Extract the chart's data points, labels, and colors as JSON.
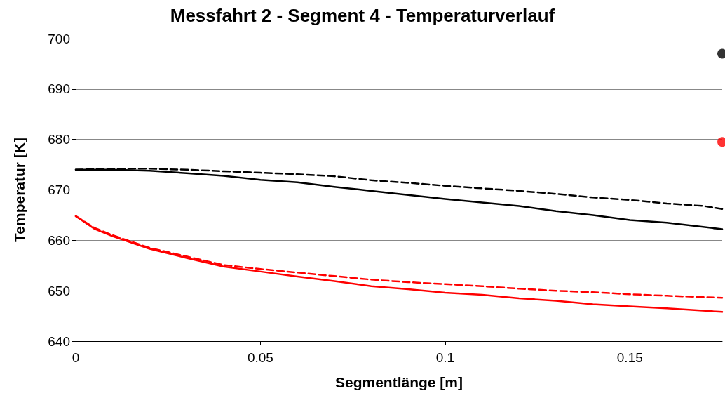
{
  "chart_data": {
    "type": "line",
    "title": "Messfahrt 2 - Segment 4 - Temperaturverlauf",
    "xlabel": "Segmentlänge [m]",
    "ylabel": "Temperatur [K]",
    "xlim": [
      0,
      0.175
    ],
    "xticks": [
      0,
      0.05,
      0.1,
      0.15
    ],
    "ylim": [
      640,
      700
    ],
    "yticks": [
      640,
      650,
      660,
      670,
      680,
      690,
      700
    ],
    "grid": "y",
    "series": [
      {
        "color": "#000000",
        "line_style": "solid",
        "marker": "none",
        "x": [
          0,
          0.01,
          0.02,
          0.03,
          0.04,
          0.05,
          0.06,
          0.07,
          0.08,
          0.09,
          0.1,
          0.11,
          0.12,
          0.13,
          0.14,
          0.15,
          0.16,
          0.175
        ],
        "values": [
          674,
          674,
          673.8,
          673.3,
          672.8,
          672.0,
          671.5,
          670.6,
          669.8,
          669.0,
          668.2,
          667.5,
          666.8,
          665.8,
          665.0,
          664.0,
          663.5,
          662.2
        ]
      },
      {
        "color": "#000000",
        "line_style": "dashed",
        "marker": "none",
        "x": [
          0,
          0.01,
          0.02,
          0.03,
          0.04,
          0.05,
          0.06,
          0.07,
          0.08,
          0.09,
          0.1,
          0.11,
          0.12,
          0.13,
          0.14,
          0.15,
          0.16,
          0.17,
          0.175
        ],
        "values": [
          674,
          674.2,
          674.2,
          674.0,
          673.7,
          673.4,
          673.1,
          672.7,
          671.9,
          671.4,
          670.8,
          670.3,
          669.8,
          669.2,
          668.5,
          668.0,
          667.3,
          666.8,
          666.2
        ]
      },
      {
        "color": "#ff0000",
        "line_style": "solid",
        "marker": "none",
        "x": [
          0,
          0.005,
          0.01,
          0.02,
          0.03,
          0.04,
          0.05,
          0.06,
          0.07,
          0.08,
          0.09,
          0.1,
          0.11,
          0.12,
          0.13,
          0.14,
          0.15,
          0.16,
          0.175
        ],
        "values": [
          664.8,
          662.3,
          660.8,
          658.3,
          656.5,
          654.8,
          653.8,
          652.8,
          651.9,
          650.9,
          650.3,
          649.6,
          649.2,
          648.5,
          648.0,
          647.3,
          646.9,
          646.5,
          645.8
        ]
      },
      {
        "color": "#ff0000",
        "line_style": "dashed",
        "marker": "none",
        "x": [
          0,
          0.005,
          0.01,
          0.02,
          0.03,
          0.04,
          0.05,
          0.06,
          0.07,
          0.08,
          0.09,
          0.1,
          0.11,
          0.12,
          0.13,
          0.14,
          0.15,
          0.16,
          0.175
        ],
        "values": [
          664.8,
          662.5,
          661,
          658.5,
          656.8,
          655.1,
          654.3,
          653.6,
          652.9,
          652.2,
          651.7,
          651.3,
          650.9,
          650.4,
          650.0,
          649.7,
          649.3,
          649.0,
          648.6
        ]
      },
      {
        "type": "scatter",
        "color": "#000000",
        "marker": "circle",
        "x": [
          0.175
        ],
        "values": [
          697
        ]
      },
      {
        "type": "scatter",
        "color": "#ff0000",
        "marker": "circle",
        "x": [
          0.175
        ],
        "values": [
          679.5
        ]
      }
    ]
  }
}
